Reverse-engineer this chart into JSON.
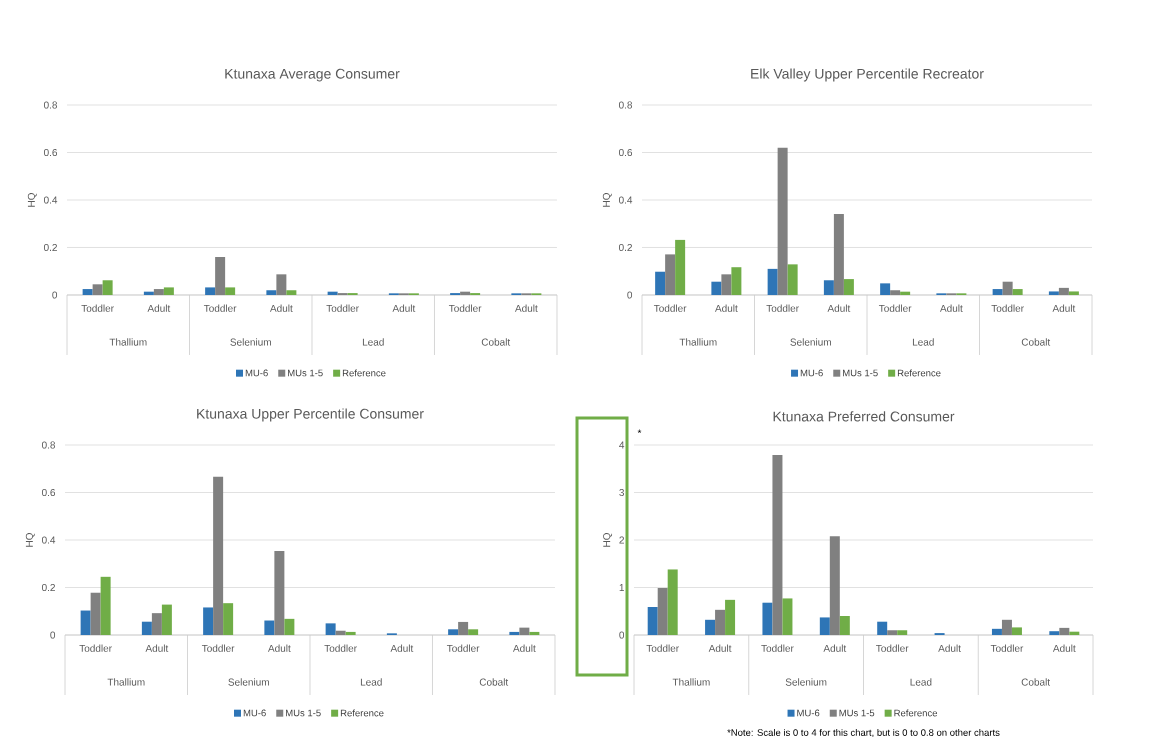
{
  "chart_data": [
    {
      "type": "bar",
      "title": "Ktunaxa Average Consumer",
      "ylabel": "HQ",
      "categories": [
        "Toddler",
        "Adult",
        "Toddler",
        "Adult",
        "Toddler",
        "Adult",
        "Toddler",
        "Adult"
      ],
      "annotations": [
        "Thallium",
        "Selenium",
        "Lead",
        "Cobalt"
      ],
      "ylim": [
        0,
        0.8
      ],
      "yticks": [
        0,
        0.2,
        0.4,
        0.6,
        0.8
      ],
      "grid": "y",
      "legend": "bottom",
      "series": [
        {
          "name": "MU-6",
          "color": "#2e75b6",
          "values": [
            0.025,
            0.014,
            0.032,
            0.02,
            0.014,
            0.007,
            0.008,
            0.007
          ]
        },
        {
          "name": "MUs 1-5",
          "color": "#808080",
          "values": [
            0.045,
            0.025,
            0.16,
            0.087,
            0.008,
            0.007,
            0.014,
            0.007
          ]
        },
        {
          "name": "Reference",
          "color": "#70ad47",
          "values": [
            0.062,
            0.032,
            0.032,
            0.02,
            0.008,
            0.007,
            0.008,
            0.007
          ]
        }
      ]
    },
    {
      "type": "bar",
      "title": "Elk Valley Upper Percentile Recreator",
      "ylabel": "HQ",
      "categories": [
        "Toddler",
        "Adult",
        "Toddler",
        "Adult",
        "Toddler",
        "Adult",
        "Toddler",
        "Adult"
      ],
      "annotations": [
        "Thallium",
        "Selenium",
        "Lead",
        "Cobalt"
      ],
      "ylim": [
        0,
        0.8
      ],
      "yticks": [
        0,
        0.2,
        0.4,
        0.6,
        0.8
      ],
      "grid": "y",
      "legend": "bottom",
      "series": [
        {
          "name": "MU-6",
          "color": "#2e75b6",
          "values": [
            0.098,
            0.056,
            0.11,
            0.062,
            0.049,
            0.007,
            0.025,
            0.015
          ]
        },
        {
          "name": "MUs 1-5",
          "color": "#808080",
          "values": [
            0.171,
            0.087,
            0.62,
            0.341,
            0.02,
            0.007,
            0.056,
            0.03
          ]
        },
        {
          "name": "Reference",
          "color": "#70ad47",
          "values": [
            0.232,
            0.117,
            0.129,
            0.067,
            0.014,
            0.007,
            0.025,
            0.015
          ]
        }
      ]
    },
    {
      "type": "bar",
      "title": "Ktunaxa Upper Percentile Consumer",
      "ylabel": "HQ",
      "categories": [
        "Toddler",
        "Adult",
        "Toddler",
        "Adult",
        "Toddler",
        "Adult",
        "Toddler",
        "Adult"
      ],
      "annotations": [
        "Thallium",
        "Selenium",
        "Lead",
        "Cobalt"
      ],
      "ylim": [
        0,
        0.8
      ],
      "yticks": [
        0,
        0.2,
        0.4,
        0.6,
        0.8
      ],
      "grid": "y",
      "legend": "bottom",
      "series": [
        {
          "name": "MU-6",
          "color": "#2e75b6",
          "values": [
            0.103,
            0.056,
            0.116,
            0.061,
            0.049,
            0.007,
            0.024,
            0.013
          ]
        },
        {
          "name": "MUs 1-5",
          "color": "#808080",
          "values": [
            0.178,
            0.092,
            0.666,
            0.354,
            0.018,
            0,
            0.055,
            0.031
          ]
        },
        {
          "name": "Reference",
          "color": "#70ad47",
          "values": [
            0.245,
            0.128,
            0.134,
            0.068,
            0.013,
            0,
            0.024,
            0.013
          ]
        }
      ]
    },
    {
      "type": "bar",
      "title": "Ktunaxa Preferred Consumer",
      "ylabel": "HQ",
      "categories": [
        "Toddler",
        "Adult",
        "Toddler",
        "Adult",
        "Toddler",
        "Adult",
        "Toddler",
        "Adult"
      ],
      "annotations": [
        "Thallium",
        "Selenium",
        "Lead",
        "Cobalt",
        "*",
        "*Note: Scale is 0 to 4 for this  chart, but is 0 to 0.8 on other charts"
      ],
      "ylim": [
        0,
        4
      ],
      "yticks": [
        0,
        1,
        2,
        3,
        4
      ],
      "grid": "y",
      "legend": "bottom",
      "series": [
        {
          "name": "MU-6",
          "color": "#2e75b6",
          "values": [
            0.59,
            0.32,
            0.68,
            0.37,
            0.28,
            0.04,
            0.13,
            0.08
          ]
        },
        {
          "name": "MUs 1-5",
          "color": "#808080",
          "values": [
            0.99,
            0.53,
            3.79,
            2.08,
            0.1,
            0,
            0.32,
            0.15
          ]
        },
        {
          "name": "Reference",
          "color": "#70ad47",
          "values": [
            1.38,
            0.74,
            0.77,
            0.4,
            0.1,
            0,
            0.16,
            0.07
          ]
        }
      ]
    }
  ]
}
